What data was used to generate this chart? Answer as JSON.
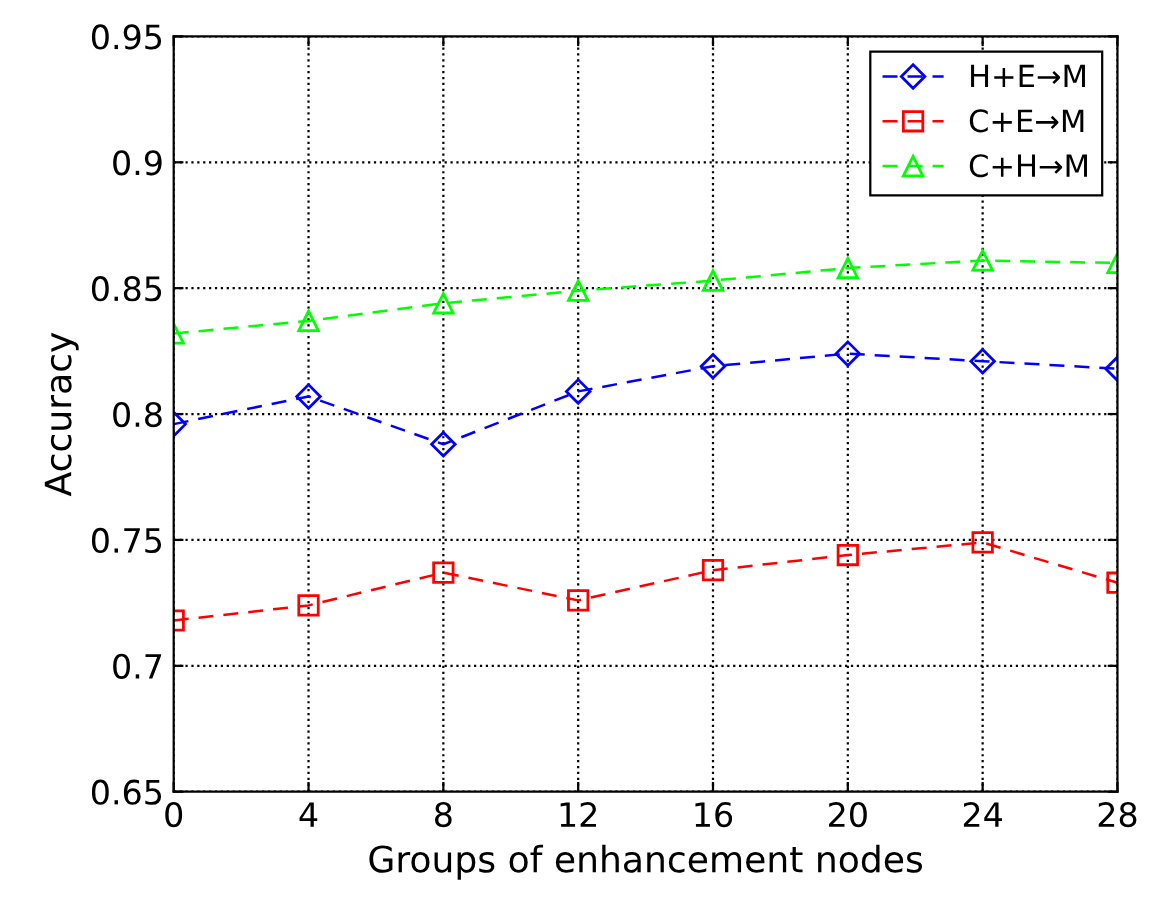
{
  "chart_data": {
    "type": "line",
    "xlabel": "Groups of enhancement nodes",
    "ylabel": "Accuracy",
    "x": [
      0,
      4,
      8,
      12,
      16,
      20,
      24,
      28
    ],
    "series": [
      {
        "name": "H+E→M",
        "color": "#0000ff",
        "marker": "diamond",
        "line_style": "dashed",
        "values": [
          0.796,
          0.807,
          0.788,
          0.809,
          0.819,
          0.824,
          0.821,
          0.818
        ]
      },
      {
        "name": "C+E→M",
        "color": "#ff0000",
        "marker": "square",
        "line_style": "dashed",
        "values": [
          0.718,
          0.724,
          0.737,
          0.726,
          0.738,
          0.744,
          0.749,
          0.733
        ]
      },
      {
        "name": "C+H→M",
        "color": "#00ff00",
        "marker": "triangle",
        "line_style": "dashed",
        "values": [
          0.832,
          0.837,
          0.844,
          0.849,
          0.853,
          0.858,
          0.861,
          0.86
        ]
      }
    ],
    "xlim": [
      0,
      28
    ],
    "xticks": [
      0,
      4,
      8,
      12,
      16,
      20,
      24,
      28
    ],
    "ylim": [
      0.65,
      0.95
    ],
    "yticks": [
      0.65,
      0.7,
      0.75,
      0.8,
      0.85,
      0.9,
      0.95
    ],
    "grid": true,
    "legend": "top right"
  }
}
